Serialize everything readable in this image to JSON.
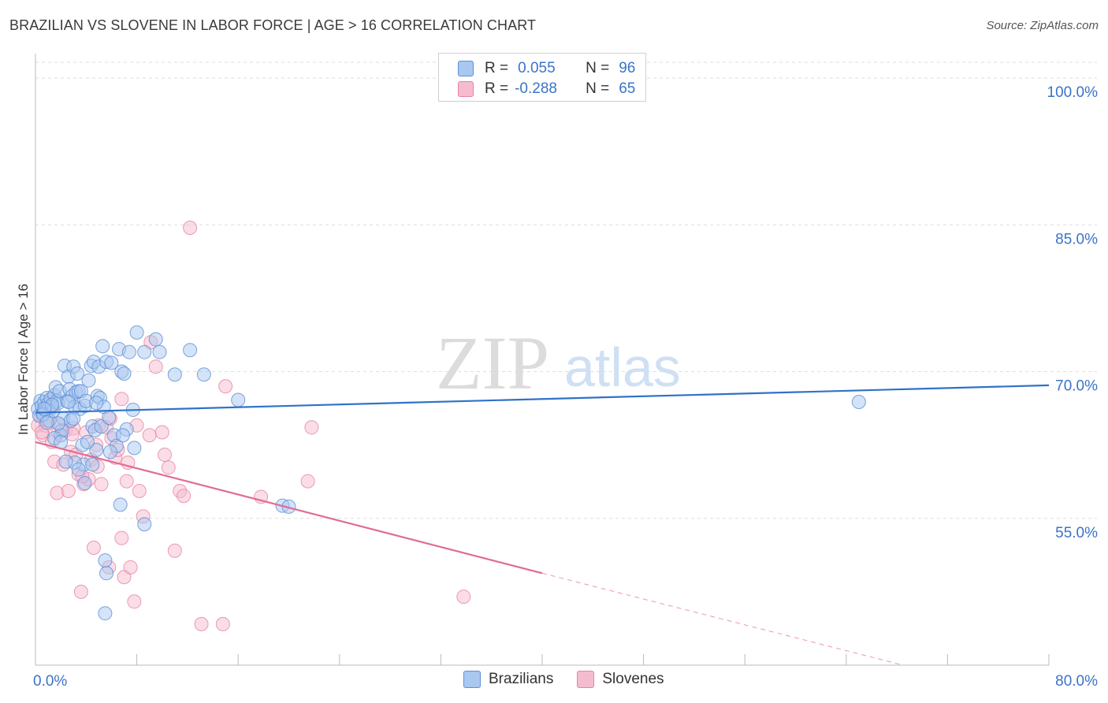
{
  "header": {
    "title": "BRAZILIAN VS SLOVENE IN LABOR FORCE | AGE > 16 CORRELATION CHART",
    "source": "Source: ZipAtlas.com"
  },
  "legend_top": {
    "rows": [
      {
        "r_label": "R =",
        "r_value": "0.055",
        "n_label": "N =",
        "n_value": "96"
      },
      {
        "r_label": "R =",
        "r_value": "-0.288",
        "n_label": "N =",
        "n_value": "65"
      }
    ]
  },
  "watermark": {
    "zip": "ZIP",
    "atlas": "atlas"
  },
  "colors": {
    "brazilians_fill": "#a9c8f0",
    "brazilians_stroke": "#5b8fd6",
    "brazilians_line": "#2f72c9",
    "slovenes_fill": "#f5bcd0",
    "slovenes_stroke": "#e9839f",
    "slovenes_line": "#e06b93",
    "tick_label": "#3b73c8",
    "grid": "#dddddd"
  },
  "chart_data": {
    "type": "scatter",
    "ylabel": "In Labor Force | Age > 16",
    "xlim": [
      0,
      80
    ],
    "ylim": [
      40,
      102.5
    ],
    "x_tick_labels": [
      {
        "value": 0,
        "label": "0.0%"
      },
      {
        "value": 80,
        "label": "80.0%"
      }
    ],
    "y_tick_labels": [
      {
        "value": 100,
        "label": "100.0%"
      },
      {
        "value": 85,
        "label": "85.0%"
      },
      {
        "value": 70,
        "label": "70.0%"
      },
      {
        "value": 55,
        "label": "55.0%"
      }
    ],
    "grid": true,
    "series": [
      {
        "name": "Brazilians",
        "trend": {
          "x": [
            0,
            80
          ],
          "y": [
            65.8,
            68.6
          ]
        },
        "points": [
          [
            0.2,
            66.2
          ],
          [
            0.3,
            65.5
          ],
          [
            0.4,
            67.0
          ],
          [
            0.5,
            66.5
          ],
          [
            0.6,
            65.8
          ],
          [
            0.7,
            66.9
          ],
          [
            0.8,
            66.0
          ],
          [
            0.9,
            67.3
          ],
          [
            1.0,
            66.7
          ],
          [
            1.1,
            65.0
          ],
          [
            1.2,
            67.2
          ],
          [
            1.3,
            66.4
          ],
          [
            1.4,
            66.0
          ],
          [
            1.5,
            67.6
          ],
          [
            1.6,
            68.4
          ],
          [
            1.7,
            67.0
          ],
          [
            1.8,
            66.8
          ],
          [
            1.9,
            68.0
          ],
          [
            2.0,
            63.5
          ],
          [
            2.1,
            64.0
          ],
          [
            2.2,
            65.2
          ],
          [
            2.3,
            70.6
          ],
          [
            2.5,
            67.0
          ],
          [
            2.6,
            69.5
          ],
          [
            2.7,
            68.2
          ],
          [
            2.8,
            65.0
          ],
          [
            2.9,
            67.5
          ],
          [
            3.0,
            70.5
          ],
          [
            3.1,
            66.4
          ],
          [
            3.2,
            67.9
          ],
          [
            3.3,
            69.8
          ],
          [
            3.4,
            68.0
          ],
          [
            3.5,
            66.2
          ],
          [
            3.6,
            68.0
          ],
          [
            3.7,
            62.5
          ],
          [
            3.8,
            60.5
          ],
          [
            3.9,
            66.5
          ],
          [
            4.0,
            67.0
          ],
          [
            4.2,
            69.1
          ],
          [
            4.4,
            70.6
          ],
          [
            4.5,
            64.4
          ],
          [
            4.6,
            71.0
          ],
          [
            4.7,
            64.0
          ],
          [
            4.8,
            62.0
          ],
          [
            4.9,
            67.5
          ],
          [
            5.0,
            70.5
          ],
          [
            5.1,
            67.3
          ],
          [
            5.2,
            64.4
          ],
          [
            5.3,
            72.6
          ],
          [
            5.4,
            66.4
          ],
          [
            5.6,
            71.0
          ],
          [
            5.8,
            65.3
          ],
          [
            6.0,
            70.9
          ],
          [
            6.2,
            63.5
          ],
          [
            6.4,
            62.4
          ],
          [
            6.6,
            72.3
          ],
          [
            6.8,
            70.0
          ],
          [
            7.0,
            69.8
          ],
          [
            7.2,
            64.1
          ],
          [
            7.4,
            72.0
          ],
          [
            7.7,
            66.1
          ],
          [
            7.8,
            62.2
          ],
          [
            8.0,
            74.0
          ],
          [
            8.6,
            72.0
          ],
          [
            9.5,
            73.3
          ],
          [
            9.8,
            72.0
          ],
          [
            11.0,
            69.7
          ],
          [
            12.2,
            72.2
          ],
          [
            13.3,
            69.7
          ],
          [
            16.0,
            67.1
          ],
          [
            19.5,
            56.3
          ],
          [
            20.0,
            56.2
          ],
          [
            65.0,
            66.9
          ],
          [
            5.5,
            50.7
          ],
          [
            5.6,
            49.4
          ],
          [
            5.5,
            45.3
          ],
          [
            8.6,
            54.4
          ],
          [
            3.1,
            60.7
          ],
          [
            3.9,
            58.6
          ],
          [
            4.5,
            60.5
          ],
          [
            2.4,
            60.8
          ],
          [
            1.8,
            64.7
          ],
          [
            6.7,
            56.4
          ],
          [
            1.5,
            63.2
          ],
          [
            0.6,
            65.6
          ],
          [
            0.9,
            64.8
          ],
          [
            1.3,
            66.6
          ],
          [
            0.7,
            66.2
          ],
          [
            2.0,
            62.8
          ],
          [
            3.4,
            60.0
          ],
          [
            5.9,
            61.8
          ],
          [
            4.1,
            62.8
          ],
          [
            6.9,
            63.5
          ],
          [
            4.8,
            66.8
          ],
          [
            3.0,
            65.2
          ],
          [
            2.6,
            66.9
          ]
        ]
      },
      {
        "name": "Slovenes",
        "trend": {
          "x": [
            0,
            40
          ],
          "y": [
            62.8,
            49.4
          ]
        },
        "trend_dashed": {
          "x": [
            40,
            68.5
          ],
          "y": [
            49.4,
            40.0
          ]
        },
        "points": [
          [
            0.2,
            64.5
          ],
          [
            0.4,
            65.5
          ],
          [
            0.6,
            63.5
          ],
          [
            0.8,
            64.5
          ],
          [
            1.0,
            65.0
          ],
          [
            1.2,
            67.0
          ],
          [
            1.3,
            62.8
          ],
          [
            1.5,
            60.8
          ],
          [
            1.7,
            57.6
          ],
          [
            1.8,
            63.8
          ],
          [
            2.0,
            64.5
          ],
          [
            2.2,
            60.5
          ],
          [
            2.4,
            64.0
          ],
          [
            2.6,
            57.8
          ],
          [
            2.8,
            61.8
          ],
          [
            3.0,
            64.2
          ],
          [
            3.2,
            61.5
          ],
          [
            3.4,
            59.5
          ],
          [
            3.6,
            47.5
          ],
          [
            3.8,
            58.5
          ],
          [
            4.0,
            63.8
          ],
          [
            4.2,
            59.0
          ],
          [
            4.4,
            61.0
          ],
          [
            4.6,
            52.0
          ],
          [
            4.8,
            62.5
          ],
          [
            5.0,
            64.5
          ],
          [
            5.2,
            58.5
          ],
          [
            5.6,
            64.3
          ],
          [
            5.8,
            50.0
          ],
          [
            6.0,
            63.2
          ],
          [
            6.3,
            61.2
          ],
          [
            6.5,
            62.0
          ],
          [
            6.8,
            53.0
          ],
          [
            7.0,
            49.0
          ],
          [
            7.2,
            58.8
          ],
          [
            7.5,
            50.0
          ],
          [
            7.8,
            46.5
          ],
          [
            8.0,
            64.5
          ],
          [
            8.2,
            57.8
          ],
          [
            8.5,
            55.2
          ],
          [
            9.0,
            63.5
          ],
          [
            9.5,
            70.5
          ],
          [
            10.0,
            63.8
          ],
          [
            10.2,
            61.5
          ],
          [
            10.5,
            60.2
          ],
          [
            11.0,
            51.7
          ],
          [
            11.4,
            57.8
          ],
          [
            11.7,
            57.3
          ],
          [
            12.2,
            84.7
          ],
          [
            13.1,
            44.2
          ],
          [
            14.8,
            44.2
          ],
          [
            15.0,
            68.5
          ],
          [
            17.8,
            57.2
          ],
          [
            21.5,
            58.8
          ],
          [
            21.8,
            64.3
          ],
          [
            33.8,
            47.0
          ],
          [
            6.8,
            67.2
          ],
          [
            5.9,
            65.2
          ],
          [
            9.1,
            73.0
          ],
          [
            2.9,
            63.6
          ],
          [
            1.1,
            66.0
          ],
          [
            0.5,
            63.8
          ],
          [
            3.7,
            59.3
          ],
          [
            4.9,
            60.3
          ],
          [
            7.3,
            60.7
          ]
        ]
      }
    ]
  }
}
